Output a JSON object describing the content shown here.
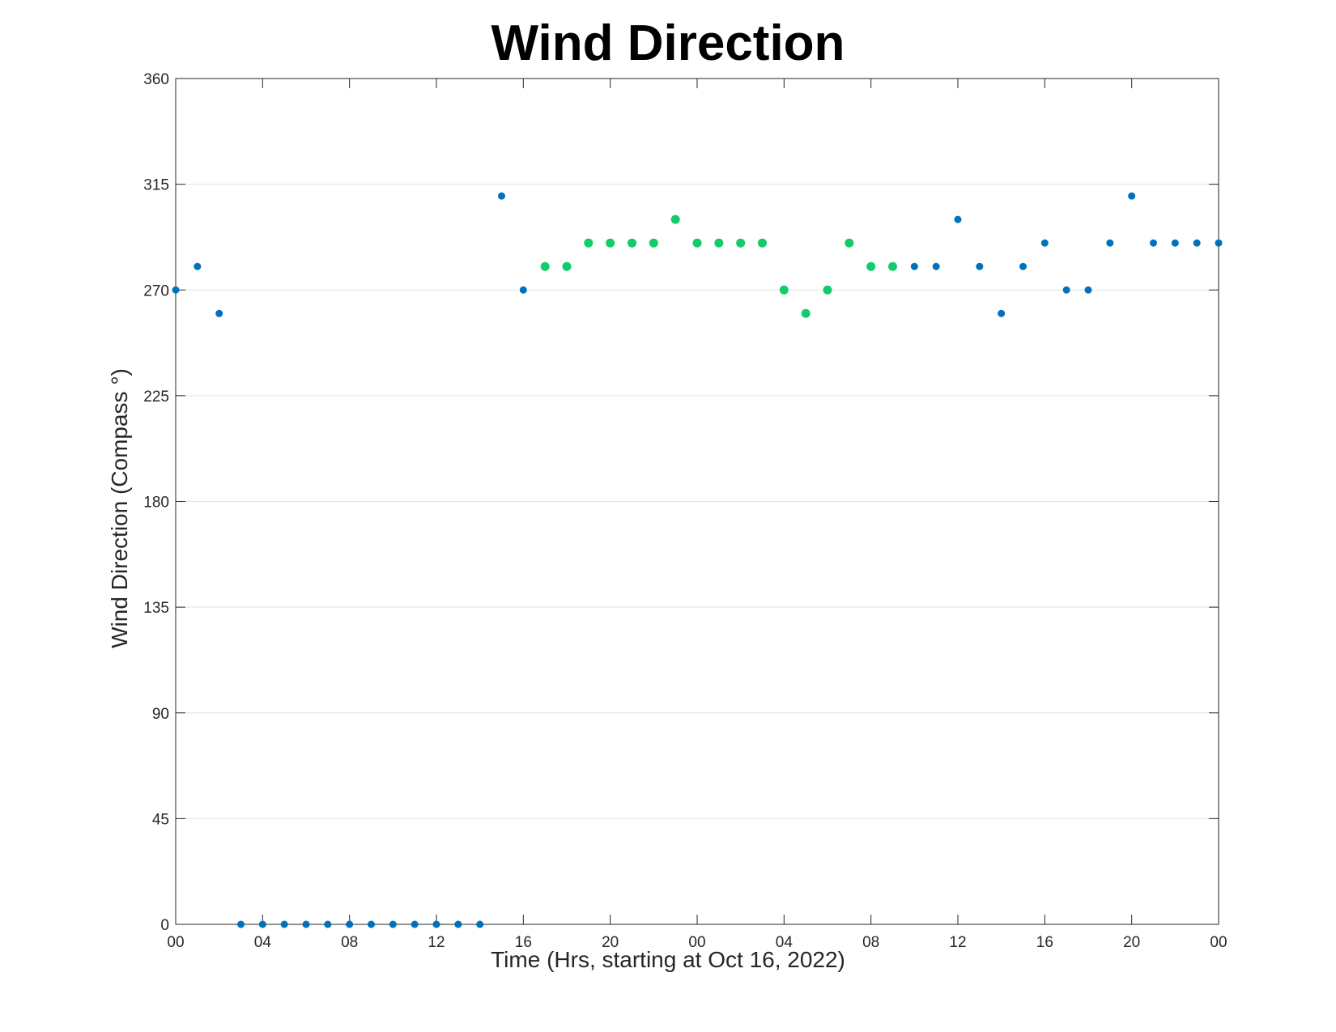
{
  "chart_data": {
    "type": "scatter",
    "title": "Wind Direction",
    "xlabel": "Time (Hrs, starting at Oct 16, 2022)",
    "ylabel": "Wind Direction (Compass °)",
    "ylim": [
      0,
      360
    ],
    "xlim": [
      "2022-10-16 00:00",
      "2022-10-18 00:00"
    ],
    "yticks": [
      0,
      45,
      90,
      135,
      180,
      225,
      270,
      315,
      360
    ],
    "xticks": [
      {
        "x": "2022-10-16 00:00",
        "label": "00"
      },
      {
        "x": "2022-10-16 04:00",
        "label": "04"
      },
      {
        "x": "2022-10-16 08:00",
        "label": "08"
      },
      {
        "x": "2022-10-16 12:00",
        "label": "12"
      },
      {
        "x": "2022-10-16 16:00",
        "label": "16"
      },
      {
        "x": "2022-10-16 20:00",
        "label": "20"
      },
      {
        "x": "2022-10-17 00:00",
        "label": "00"
      },
      {
        "x": "2022-10-17 04:00",
        "label": "04"
      },
      {
        "x": "2022-10-17 08:00",
        "label": "08"
      },
      {
        "x": "2022-10-17 12:00",
        "label": "12"
      },
      {
        "x": "2022-10-17 16:00",
        "label": "16"
      },
      {
        "x": "2022-10-17 20:00",
        "label": "20"
      },
      {
        "x": "2022-10-18 00:00",
        "label": "00"
      }
    ],
    "grid": "horizontal",
    "series": [
      {
        "color": "#0072BD",
        "points": [
          {
            "x": "2022-10-16 00:00",
            "y": 270
          },
          {
            "x": "2022-10-16 01:00",
            "y": 280
          },
          {
            "x": "2022-10-16 02:00",
            "y": 260
          },
          {
            "x": "2022-10-16 03:00",
            "y": 0
          },
          {
            "x": "2022-10-16 04:00",
            "y": 0
          },
          {
            "x": "2022-10-16 05:00",
            "y": 0
          },
          {
            "x": "2022-10-16 06:00",
            "y": 0
          },
          {
            "x": "2022-10-16 07:00",
            "y": 0
          },
          {
            "x": "2022-10-16 08:00",
            "y": 0
          },
          {
            "x": "2022-10-16 09:00",
            "y": 0
          },
          {
            "x": "2022-10-16 10:00",
            "y": 0
          },
          {
            "x": "2022-10-16 11:00",
            "y": 0
          },
          {
            "x": "2022-10-16 12:00",
            "y": 0
          },
          {
            "x": "2022-10-16 13:00",
            "y": 0
          },
          {
            "x": "2022-10-16 14:00",
            "y": 0
          },
          {
            "x": "2022-10-16 15:00",
            "y": 310
          },
          {
            "x": "2022-10-16 16:00",
            "y": 270
          },
          {
            "x": "2022-10-17 10:00",
            "y": 280
          },
          {
            "x": "2022-10-17 11:00",
            "y": 280
          },
          {
            "x": "2022-10-17 12:00",
            "y": 300
          },
          {
            "x": "2022-10-17 13:00",
            "y": 280
          },
          {
            "x": "2022-10-17 14:00",
            "y": 260
          },
          {
            "x": "2022-10-17 15:00",
            "y": 280
          },
          {
            "x": "2022-10-17 16:00",
            "y": 290
          },
          {
            "x": "2022-10-17 17:00",
            "y": 270
          },
          {
            "x": "2022-10-17 18:00",
            "y": 270
          },
          {
            "x": "2022-10-17 19:00",
            "y": 290
          },
          {
            "x": "2022-10-17 20:00",
            "y": 310
          },
          {
            "x": "2022-10-17 21:00",
            "y": 290
          },
          {
            "x": "2022-10-17 22:00",
            "y": 290
          },
          {
            "x": "2022-10-17 23:00",
            "y": 290
          },
          {
            "x": "2022-10-18 00:00",
            "y": 290
          }
        ]
      },
      {
        "color": "#12CC6A",
        "points": [
          {
            "x": "2022-10-16 17:00",
            "y": 280
          },
          {
            "x": "2022-10-16 18:00",
            "y": 280
          },
          {
            "x": "2022-10-16 19:00",
            "y": 290
          },
          {
            "x": "2022-10-16 20:00",
            "y": 290
          },
          {
            "x": "2022-10-16 21:00",
            "y": 290
          },
          {
            "x": "2022-10-16 22:00",
            "y": 290
          },
          {
            "x": "2022-10-16 23:00",
            "y": 300
          },
          {
            "x": "2022-10-17 00:00",
            "y": 290
          },
          {
            "x": "2022-10-17 01:00",
            "y": 290
          },
          {
            "x": "2022-10-17 02:00",
            "y": 290
          },
          {
            "x": "2022-10-17 03:00",
            "y": 290
          },
          {
            "x": "2022-10-17 04:00",
            "y": 270
          },
          {
            "x": "2022-10-17 05:00",
            "y": 260
          },
          {
            "x": "2022-10-17 06:00",
            "y": 270
          },
          {
            "x": "2022-10-17 07:00",
            "y": 290
          },
          {
            "x": "2022-10-17 08:00",
            "y": 280
          },
          {
            "x": "2022-10-17 09:00",
            "y": 280
          }
        ]
      }
    ]
  }
}
